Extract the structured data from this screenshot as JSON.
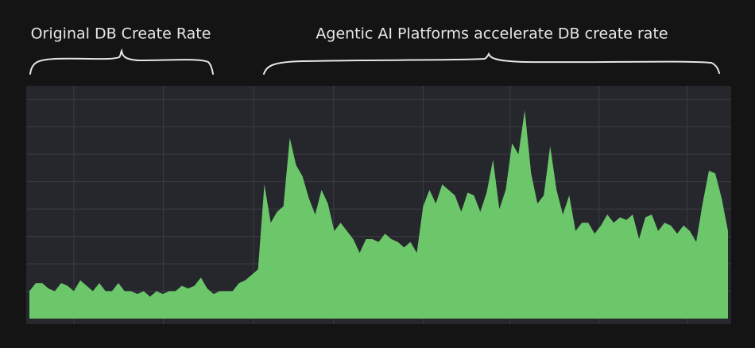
{
  "chart_data": {
    "type": "area",
    "annotations": [
      "Original DB Create Rate",
      "Agentic AI Platforms accelerate DB create rate"
    ],
    "x": [
      0,
      1,
      2,
      3,
      4,
      5,
      6,
      7,
      8,
      9,
      10,
      11,
      12,
      13,
      14,
      15,
      16,
      17,
      18,
      19,
      20,
      21,
      22,
      23,
      24,
      25,
      26,
      27,
      28,
      29,
      30,
      31,
      32,
      33,
      34,
      35,
      36,
      37,
      38,
      39,
      40,
      41,
      42,
      43,
      44,
      45,
      46,
      47,
      48,
      49,
      50,
      51,
      52,
      53,
      54,
      55,
      56,
      57,
      58,
      59,
      60,
      61,
      62,
      63,
      64,
      65,
      66,
      67,
      68,
      69,
      70,
      71,
      72,
      73,
      74,
      75,
      76,
      77,
      78,
      79,
      80,
      81,
      82,
      83,
      84,
      85,
      86,
      87,
      88,
      89,
      90,
      91,
      92,
      93,
      94,
      95,
      96,
      97,
      98,
      99,
      100,
      101,
      102,
      103,
      104,
      105,
      106,
      107,
      108,
      109,
      110
    ],
    "values": [
      1.0,
      1.3,
      1.3,
      1.1,
      1.0,
      1.3,
      1.2,
      1.0,
      1.4,
      1.2,
      1.0,
      1.3,
      1.0,
      1.0,
      1.3,
      1.0,
      1.0,
      0.9,
      1.0,
      0.8,
      1.0,
      0.9,
      1.0,
      1.0,
      1.2,
      1.1,
      1.2,
      1.5,
      1.1,
      0.9,
      1.0,
      1.0,
      1.0,
      1.3,
      1.4,
      1.6,
      1.8,
      4.9,
      3.5,
      3.9,
      4.1,
      6.6,
      5.6,
      5.2,
      4.4,
      3.8,
      4.7,
      4.2,
      3.2,
      3.5,
      3.2,
      2.9,
      2.4,
      2.9,
      2.9,
      2.8,
      3.1,
      2.9,
      2.8,
      2.6,
      2.8,
      2.4,
      4.1,
      4.7,
      4.2,
      4.9,
      4.7,
      4.5,
      3.9,
      4.6,
      4.5,
      3.9,
      4.6,
      5.8,
      4.0,
      4.7,
      6.4,
      6.0,
      7.6,
      5.3,
      4.2,
      4.5,
      6.3,
      4.7,
      3.8,
      4.5,
      3.2,
      3.5,
      3.5,
      3.1,
      3.4,
      3.8,
      3.5,
      3.7,
      3.6,
      3.8,
      2.9,
      3.7,
      3.8,
      3.2,
      3.5,
      3.4,
      3.1,
      3.4,
      3.2,
      2.8,
      4.2,
      5.4,
      5.3,
      4.4,
      3.2
    ],
    "color": "#6cc76b",
    "xlim": [
      0,
      110
    ],
    "ylim": [
      0,
      8.5
    ],
    "xgrid": [
      7,
      21.1,
      35.3,
      47.9,
      62,
      75.7,
      89.7,
      103.6
    ],
    "ygrid": [
      1,
      2,
      3,
      4,
      5,
      6,
      7,
      8
    ],
    "grid": true
  }
}
